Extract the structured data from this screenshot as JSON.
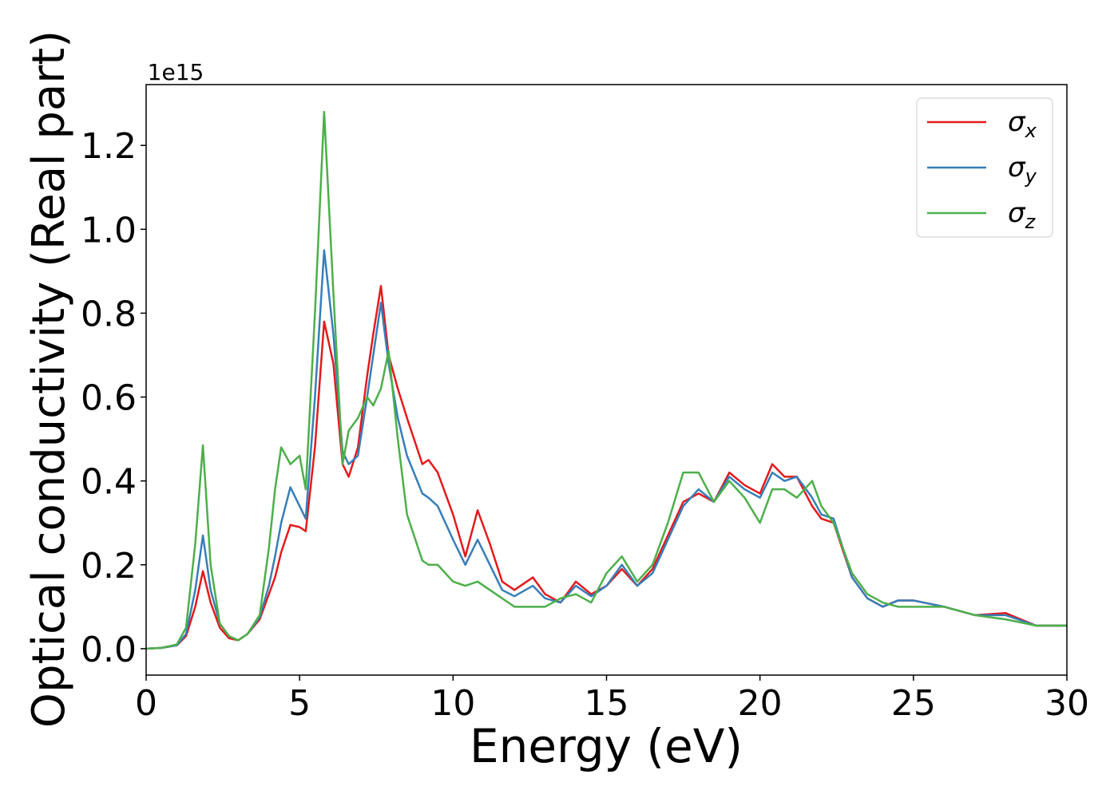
{
  "chart_data": {
    "type": "line",
    "xlabel": "Energy (eV)",
    "ylabel": "Optical conductivity (Real part)",
    "y_offset_text": "1e15",
    "x": [
      0,
      0.5,
      1,
      1.3,
      1.6,
      1.85,
      2.1,
      2.4,
      2.7,
      3,
      3.3,
      3.7,
      4,
      4.2,
      4.4,
      4.7,
      5,
      5.2,
      5.5,
      5.8,
      6.1,
      6.4,
      6.6,
      6.9,
      7.2,
      7.4,
      7.65,
      7.9,
      8.2,
      8.5,
      9,
      9.2,
      9.5,
      10,
      10.4,
      10.8,
      11.2,
      11.6,
      12,
      12.6,
      13,
      13.5,
      14,
      14.5,
      15,
      15.5,
      16,
      16.5,
      17,
      17.5,
      18,
      18.5,
      19,
      19.5,
      20,
      20.4,
      20.8,
      21.2,
      21.7,
      22,
      22.4,
      23,
      23.5,
      24,
      24.5,
      25,
      26,
      27,
      28,
      29,
      30
    ],
    "series": [
      {
        "name": "σx",
        "color": "#e41a1c",
        "values": [
          0,
          0.002,
          0.008,
          0.03,
          0.1,
          0.185,
          0.11,
          0.05,
          0.025,
          0.02,
          0.035,
          0.07,
          0.13,
          0.17,
          0.23,
          0.295,
          0.29,
          0.28,
          0.48,
          0.78,
          0.68,
          0.44,
          0.41,
          0.48,
          0.65,
          0.75,
          0.865,
          0.7,
          0.62,
          0.55,
          0.44,
          0.45,
          0.42,
          0.32,
          0.22,
          0.33,
          0.25,
          0.16,
          0.14,
          0.17,
          0.13,
          0.11,
          0.16,
          0.13,
          0.15,
          0.19,
          0.15,
          0.19,
          0.27,
          0.35,
          0.37,
          0.35,
          0.42,
          0.39,
          0.37,
          0.44,
          0.41,
          0.41,
          0.34,
          0.31,
          0.3,
          0.17,
          0.12,
          0.1,
          0.115,
          0.115,
          0.1,
          0.08,
          0.085,
          0.055,
          0.055
        ]
      },
      {
        "name": "σy",
        "color": "#377eb8",
        "values": [
          0,
          0.002,
          0.008,
          0.035,
          0.14,
          0.27,
          0.14,
          0.06,
          0.03,
          0.02,
          0.035,
          0.075,
          0.15,
          0.22,
          0.3,
          0.385,
          0.34,
          0.31,
          0.6,
          0.95,
          0.75,
          0.47,
          0.44,
          0.46,
          0.6,
          0.7,
          0.825,
          0.68,
          0.55,
          0.46,
          0.37,
          0.36,
          0.34,
          0.26,
          0.2,
          0.26,
          0.2,
          0.14,
          0.125,
          0.15,
          0.12,
          0.11,
          0.15,
          0.125,
          0.15,
          0.2,
          0.15,
          0.18,
          0.26,
          0.34,
          0.38,
          0.35,
          0.41,
          0.38,
          0.36,
          0.42,
          0.4,
          0.41,
          0.36,
          0.32,
          0.31,
          0.17,
          0.12,
          0.1,
          0.115,
          0.115,
          0.1,
          0.08,
          0.08,
          0.055,
          0.055
        ]
      },
      {
        "name": "σz",
        "color": "#4daf4a",
        "values": [
          0,
          0.002,
          0.01,
          0.05,
          0.25,
          0.485,
          0.2,
          0.06,
          0.03,
          0.02,
          0.035,
          0.08,
          0.24,
          0.38,
          0.48,
          0.44,
          0.46,
          0.38,
          0.8,
          1.28,
          0.85,
          0.44,
          0.52,
          0.55,
          0.6,
          0.58,
          0.62,
          0.71,
          0.5,
          0.32,
          0.21,
          0.2,
          0.2,
          0.16,
          0.15,
          0.16,
          0.14,
          0.12,
          0.1,
          0.1,
          0.1,
          0.12,
          0.13,
          0.11,
          0.18,
          0.22,
          0.16,
          0.2,
          0.3,
          0.42,
          0.42,
          0.35,
          0.4,
          0.36,
          0.3,
          0.38,
          0.38,
          0.36,
          0.4,
          0.34,
          0.3,
          0.18,
          0.13,
          0.11,
          0.1,
          0.1,
          0.1,
          0.08,
          0.07,
          0.055,
          0.055
        ]
      }
    ],
    "xlim": [
      0,
      30
    ],
    "xticks": [
      0,
      5,
      10,
      15,
      20,
      25,
      30
    ],
    "ylim": [
      -0.063,
      1.345
    ],
    "yticks": [
      {
        "value": 0,
        "label": "0.0"
      },
      0.2,
      0.4,
      0.6,
      0.8,
      {
        "value": 1,
        "label": "1.0"
      },
      1.2
    ],
    "grid": false,
    "legend": "upper right"
  }
}
